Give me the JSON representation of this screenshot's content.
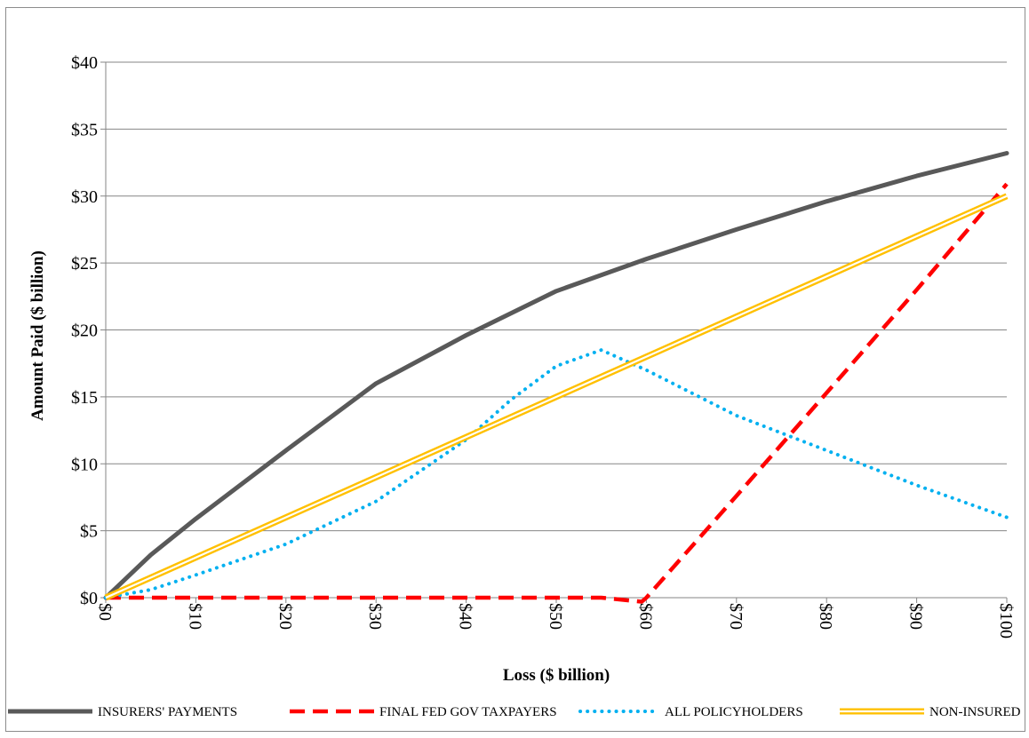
{
  "chart_data": {
    "type": "line",
    "title": "",
    "xlabel": "Loss ($ billion)",
    "ylabel": "Amount Paid ($ billion)",
    "xlim": [
      0,
      100
    ],
    "ylim": [
      0,
      40
    ],
    "x_ticks": [
      0,
      10,
      20,
      30,
      40,
      50,
      60,
      70,
      80,
      90,
      100
    ],
    "x_tick_labels": [
      "$0",
      "$10",
      "$20",
      "$30",
      "$40",
      "$50",
      "$60",
      "$70",
      "$80",
      "$90",
      "$100"
    ],
    "y_ticks": [
      0,
      5,
      10,
      15,
      20,
      25,
      30,
      35,
      40
    ],
    "y_tick_labels": [
      "$0",
      "$5",
      "$10",
      "$15",
      "$20",
      "$25",
      "$30",
      "$35",
      "$40"
    ],
    "grid": "horizontal",
    "legend_position": "bottom",
    "series": [
      {
        "name": "INSURERS' PAYMENTS",
        "color": "#595959",
        "style": "solid",
        "x": [
          0,
          5,
          10,
          20,
          30,
          40,
          50,
          60,
          70,
          80,
          90,
          100
        ],
        "y": [
          0,
          3.2,
          5.9,
          11.0,
          16.0,
          19.6,
          22.9,
          25.3,
          27.5,
          29.6,
          31.5,
          33.2
        ]
      },
      {
        "name": "FINAL FED GOV TAXPAYERS",
        "color": "#ff0000",
        "style": "dashed",
        "x": [
          0,
          10,
          20,
          30,
          40,
          50,
          55,
          59.5,
          60,
          70,
          80,
          90,
          100
        ],
        "y": [
          0,
          0,
          0,
          0,
          0,
          0,
          0,
          -0.3,
          0,
          7.6,
          15.3,
          23.0,
          30.9
        ]
      },
      {
        "name": "ALL POLICYHOLDERS",
        "color": "#00b0f0",
        "style": "dotted",
        "x": [
          0,
          5,
          10,
          20,
          30,
          40,
          45,
          50,
          55,
          60,
          70,
          80,
          90,
          100
        ],
        "y": [
          0,
          0.6,
          1.7,
          4.0,
          7.2,
          11.8,
          14.8,
          17.3,
          18.5,
          17.0,
          13.6,
          11.0,
          8.4,
          6.0
        ]
      },
      {
        "name": "NON-INSURED",
        "color": "#ffc000",
        "style": "double",
        "x": [
          0,
          100
        ],
        "y": [
          0,
          30.0
        ]
      }
    ]
  }
}
